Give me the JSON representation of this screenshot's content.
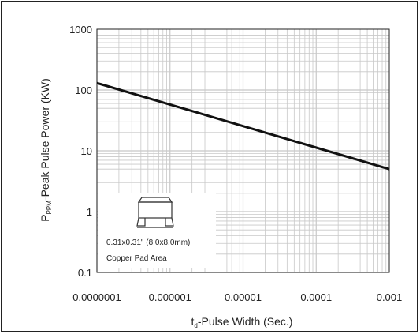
{
  "chart_data": {
    "type": "line",
    "xscale": "log",
    "yscale": "log",
    "xlim": [
      1e-07,
      0.001
    ],
    "ylim": [
      0.1,
      1000
    ],
    "x_tick_labels": [
      "0.0000001",
      "0.000001",
      "0.00001",
      "0.0001",
      "0.001"
    ],
    "y_tick_labels": [
      "0.1",
      "1",
      "10",
      "100",
      "1000"
    ],
    "xlabel": {
      "main": "t",
      "sub": "d",
      "rest": "-Pulse Width (Sec.)"
    },
    "ylabel": {
      "main": "P",
      "sub": "PPM",
      "rest": "-Peak Pulse Power (KW)"
    },
    "grid": true,
    "series": [
      {
        "x": [
          1e-07,
          0.001
        ],
        "y": [
          130,
          5
        ]
      }
    ],
    "annotation": {
      "line1": "0.31x0.31\" (8.0x8.0mm)",
      "line2": "Copper Pad Area"
    },
    "colors": {
      "line": "#111111",
      "grid": "#c8c8c8",
      "axis": "#222222"
    }
  }
}
